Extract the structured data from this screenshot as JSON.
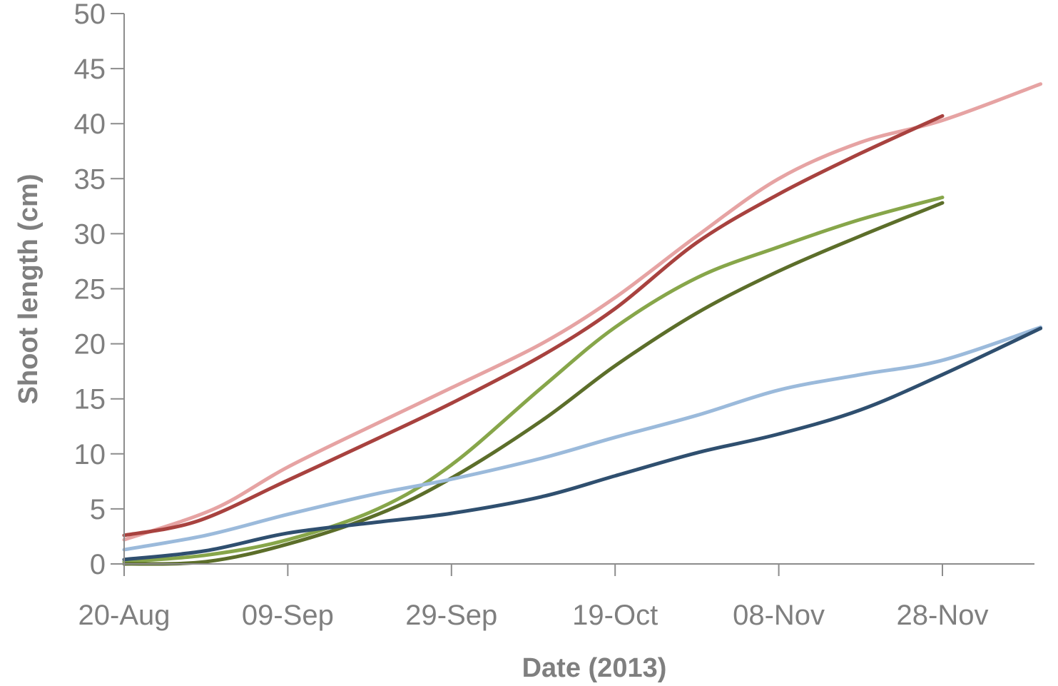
{
  "chart_data": {
    "type": "line",
    "title": "",
    "xlabel": "Date (2013)",
    "ylabel": "Shoot length (cm)",
    "xlim": [
      "2013-08-20",
      "2013-12-15"
    ],
    "ylim": [
      0,
      50
    ],
    "y_ticks": [
      0,
      5,
      10,
      15,
      20,
      25,
      30,
      35,
      40,
      45,
      50
    ],
    "x_ticks": [
      {
        "date": "2013-08-20",
        "label": "20-Aug"
      },
      {
        "date": "2013-09-09",
        "label": "09-Sep"
      },
      {
        "date": "2013-09-29",
        "label": "29-Sep"
      },
      {
        "date": "2013-10-19",
        "label": "19-Oct"
      },
      {
        "date": "2013-11-08",
        "label": "08-Nov"
      },
      {
        "date": "2013-11-28",
        "label": "28-Nov"
      }
    ],
    "grid": false,
    "legend": "none",
    "series": [
      {
        "color": "#e6a3a3",
        "points": [
          [
            "2013-08-20",
            2.2
          ],
          [
            "2013-08-31",
            5.0
          ],
          [
            "2013-09-09",
            8.8
          ],
          [
            "2013-09-20",
            12.8
          ],
          [
            "2013-09-29",
            16.0
          ],
          [
            "2013-10-10",
            20.0
          ],
          [
            "2013-10-19",
            24.2
          ],
          [
            "2013-10-29",
            29.8
          ],
          [
            "2013-11-08",
            35.0
          ],
          [
            "2013-11-18",
            38.3
          ],
          [
            "2013-11-28",
            40.3
          ],
          [
            "2013-12-10",
            43.6
          ]
        ]
      },
      {
        "color": "#a8423f",
        "points": [
          [
            "2013-08-20",
            2.6
          ],
          [
            "2013-08-29",
            3.9
          ],
          [
            "2013-09-09",
            7.6
          ],
          [
            "2013-09-20",
            11.4
          ],
          [
            "2013-09-29",
            14.6
          ],
          [
            "2013-10-10",
            18.9
          ],
          [
            "2013-10-19",
            23.2
          ],
          [
            "2013-10-29",
            29.2
          ],
          [
            "2013-11-08",
            33.6
          ],
          [
            "2013-11-18",
            37.3
          ],
          [
            "2013-11-28",
            40.7
          ]
        ]
      },
      {
        "color": "#87a64a",
        "points": [
          [
            "2013-08-20",
            0.2
          ],
          [
            "2013-08-30",
            0.8
          ],
          [
            "2013-09-09",
            2.2
          ],
          [
            "2013-09-20",
            5.0
          ],
          [
            "2013-09-29",
            9.0
          ],
          [
            "2013-10-10",
            16.0
          ],
          [
            "2013-10-19",
            21.5
          ],
          [
            "2013-10-29",
            26.0
          ],
          [
            "2013-11-08",
            28.8
          ],
          [
            "2013-11-18",
            31.3
          ],
          [
            "2013-11-28",
            33.3
          ]
        ]
      },
      {
        "color": "#5c6e2a",
        "points": [
          [
            "2013-08-20",
            0.0
          ],
          [
            "2013-08-30",
            0.2
          ],
          [
            "2013-09-09",
            1.8
          ],
          [
            "2013-09-20",
            4.5
          ],
          [
            "2013-09-29",
            7.8
          ],
          [
            "2013-10-10",
            13.0
          ],
          [
            "2013-10-19",
            18.0
          ],
          [
            "2013-10-29",
            22.8
          ],
          [
            "2013-11-08",
            26.6
          ],
          [
            "2013-11-18",
            29.8
          ],
          [
            "2013-11-28",
            32.8
          ]
        ]
      },
      {
        "color": "#9bbadb",
        "points": [
          [
            "2013-08-20",
            1.3
          ],
          [
            "2013-08-30",
            2.6
          ],
          [
            "2013-09-09",
            4.5
          ],
          [
            "2013-09-20",
            6.4
          ],
          [
            "2013-09-29",
            7.7
          ],
          [
            "2013-10-10",
            9.6
          ],
          [
            "2013-10-19",
            11.5
          ],
          [
            "2013-10-29",
            13.5
          ],
          [
            "2013-11-08",
            15.8
          ],
          [
            "2013-11-18",
            17.2
          ],
          [
            "2013-11-28",
            18.5
          ],
          [
            "2013-12-10",
            21.5
          ]
        ]
      },
      {
        "color": "#2f4f6f",
        "points": [
          [
            "2013-08-20",
            0.4
          ],
          [
            "2013-08-30",
            1.2
          ],
          [
            "2013-09-09",
            2.8
          ],
          [
            "2013-09-20",
            3.8
          ],
          [
            "2013-09-29",
            4.6
          ],
          [
            "2013-10-10",
            6.1
          ],
          [
            "2013-10-19",
            8.0
          ],
          [
            "2013-10-29",
            10.1
          ],
          [
            "2013-11-08",
            11.8
          ],
          [
            "2013-11-18",
            14.0
          ],
          [
            "2013-11-28",
            17.2
          ],
          [
            "2013-12-10",
            21.4
          ]
        ]
      }
    ]
  }
}
